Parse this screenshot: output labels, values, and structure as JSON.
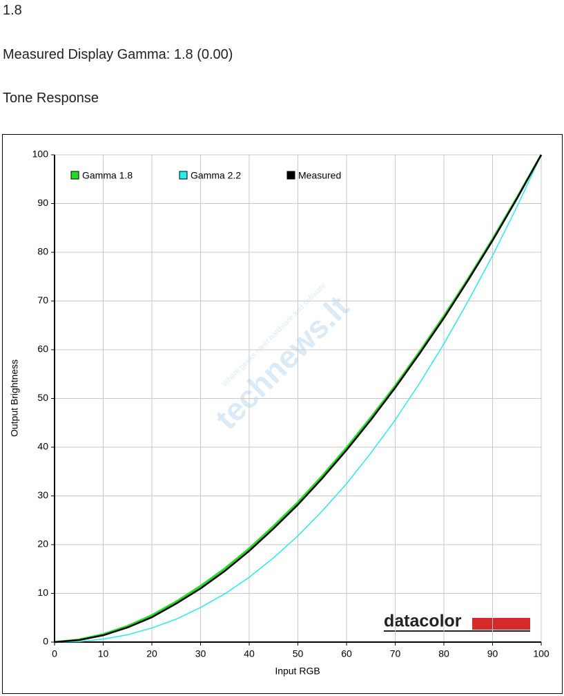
{
  "page": {
    "heading": "1.8",
    "measured_text": "Measured Display Gamma: 1.8 (0.00)",
    "section_title": "Tone Response"
  },
  "chart_data": {
    "type": "line",
    "x_label": "Input RGB",
    "y_label": "Output Brightness",
    "x": [
      0,
      5,
      10,
      15,
      20,
      25,
      30,
      35,
      40,
      45,
      50,
      55,
      60,
      65,
      70,
      75,
      80,
      85,
      90,
      95,
      100
    ],
    "series": [
      {
        "name": "Gamma 1.8",
        "color": "#22dd22",
        "values": [
          0,
          0.5,
          1.6,
          3.3,
          5.5,
          8.3,
          11.5,
          15.1,
          19.2,
          23.8,
          28.7,
          34.1,
          39.9,
          46.1,
          52.6,
          59.6,
          66.9,
          74.6,
          82.7,
          91.2,
          100
        ]
      },
      {
        "name": "Gamma 2.2",
        "color": "#22eeee",
        "values": [
          0,
          0.1,
          0.6,
          1.5,
          2.9,
          4.7,
          7.1,
          9.9,
          13.3,
          17.3,
          21.8,
          26.9,
          32.5,
          38.8,
          45.6,
          53.1,
          61.2,
          70,
          79.3,
          89.3,
          100
        ]
      },
      {
        "name": "Measured",
        "color": "#000000",
        "values": [
          0,
          0.4,
          1.4,
          3,
          5.1,
          7.9,
          11,
          14.6,
          18.7,
          23.3,
          28.2,
          33.6,
          39.4,
          45.6,
          52.2,
          59.2,
          66.5,
          74.3,
          82.4,
          91,
          100
        ]
      }
    ],
    "xlim": [
      0,
      100
    ],
    "ylim": [
      0,
      100
    ],
    "xticks": [
      0,
      10,
      20,
      30,
      40,
      50,
      60,
      70,
      80,
      90,
      100
    ],
    "yticks": [
      0,
      10,
      20,
      30,
      40,
      50,
      60,
      70,
      80,
      90,
      100
    ],
    "grid": true,
    "legend": "top",
    "logo": "datacolor",
    "watermark": [
      "technews.lt",
      "Where geeks meet hardware and software"
    ]
  }
}
